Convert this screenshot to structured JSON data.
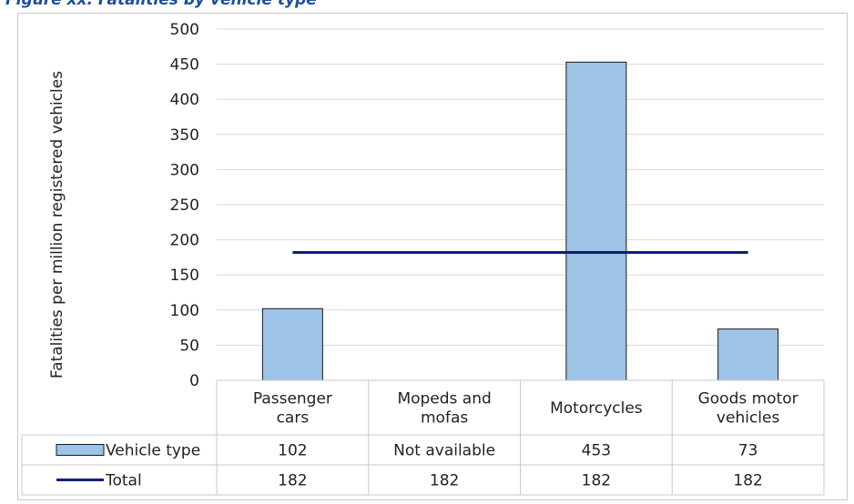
{
  "caption": "Figure xx. Fatalities by vehicle type",
  "chart_data": {
    "type": "bar",
    "title": "",
    "ylabel": "Fatalities per million registered vehicles",
    "ylim": [
      0,
      500
    ],
    "yticks": [
      0,
      50,
      100,
      150,
      200,
      250,
      300,
      350,
      400,
      450,
      500
    ],
    "categories": [
      [
        "Passenger",
        "cars"
      ],
      [
        "Mopeds and",
        "mofas"
      ],
      [
        "Motorcycles"
      ],
      [
        "Goods motor",
        "vehicles"
      ]
    ],
    "series": [
      {
        "name": "Vehicle type",
        "kind": "bar",
        "color": "#9dc3e6",
        "values": [
          102,
          null,
          453,
          73
        ],
        "labels": [
          "102",
          "Not available",
          "453",
          "73"
        ]
      },
      {
        "name": "Total",
        "kind": "line",
        "color": "#0a1f7a",
        "values": [
          182,
          182,
          182,
          182
        ],
        "labels": [
          "182",
          "182",
          "182",
          "182"
        ]
      }
    ],
    "grid": true,
    "legend": "data-table"
  }
}
